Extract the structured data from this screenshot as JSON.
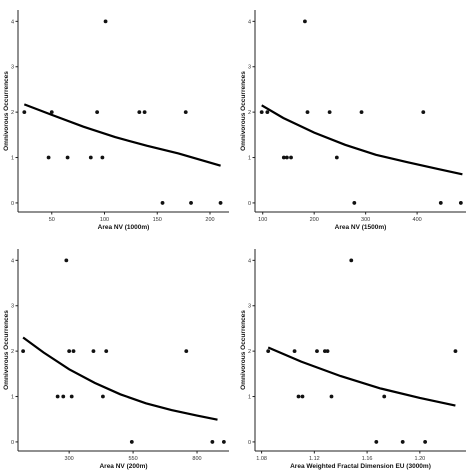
{
  "chart_data": [
    {
      "type": "scatter",
      "xlabel": "Area NV (1000m)",
      "ylabel": "Omnivorous Occurrences",
      "xlim": [
        18,
        218
      ],
      "ylim": [
        -0.2,
        4.25
      ],
      "xticks": [
        50,
        100,
        150,
        200
      ],
      "yticks": [
        0,
        1,
        2,
        3,
        4
      ],
      "grid": false,
      "points": [
        {
          "x": 24,
          "y": 2
        },
        {
          "x": 50,
          "y": 2
        },
        {
          "x": 47,
          "y": 1
        },
        {
          "x": 65,
          "y": 1
        },
        {
          "x": 87,
          "y": 1
        },
        {
          "x": 93,
          "y": 2
        },
        {
          "x": 98,
          "y": 1
        },
        {
          "x": 101,
          "y": 4
        },
        {
          "x": 133,
          "y": 2
        },
        {
          "x": 138,
          "y": 2
        },
        {
          "x": 155,
          "y": 0
        },
        {
          "x": 177,
          "y": 2
        },
        {
          "x": 182,
          "y": 0
        },
        {
          "x": 210,
          "y": 0
        }
      ],
      "fit": [
        {
          "x": 24,
          "y": 2.17
        },
        {
          "x": 50,
          "y": 1.94
        },
        {
          "x": 80,
          "y": 1.68
        },
        {
          "x": 110,
          "y": 1.45
        },
        {
          "x": 140,
          "y": 1.26
        },
        {
          "x": 170,
          "y": 1.09
        },
        {
          "x": 210,
          "y": 0.82
        }
      ]
    },
    {
      "type": "scatter",
      "xlabel": "Area NV (1500m)",
      "ylabel": "Omnivorous Occurrences",
      "xlim": [
        85,
        495
      ],
      "ylim": [
        -0.2,
        4.25
      ],
      "xticks": [
        100,
        200,
        300,
        400
      ],
      "yticks": [
        0,
        1,
        2,
        3,
        4
      ],
      "grid": false,
      "points": [
        {
          "x": 98,
          "y": 2
        },
        {
          "x": 109,
          "y": 2
        },
        {
          "x": 141,
          "y": 1
        },
        {
          "x": 147,
          "y": 1
        },
        {
          "x": 155,
          "y": 1
        },
        {
          "x": 182,
          "y": 4
        },
        {
          "x": 187,
          "y": 2
        },
        {
          "x": 230,
          "y": 2
        },
        {
          "x": 244,
          "y": 1
        },
        {
          "x": 278,
          "y": 0
        },
        {
          "x": 292,
          "y": 2
        },
        {
          "x": 412,
          "y": 2
        },
        {
          "x": 446,
          "y": 0
        },
        {
          "x": 485,
          "y": 0
        }
      ],
      "fit": [
        {
          "x": 98,
          "y": 2.15
        },
        {
          "x": 140,
          "y": 1.87
        },
        {
          "x": 200,
          "y": 1.55
        },
        {
          "x": 260,
          "y": 1.28
        },
        {
          "x": 320,
          "y": 1.06
        },
        {
          "x": 380,
          "y": 0.9
        },
        {
          "x": 440,
          "y": 0.75
        },
        {
          "x": 488,
          "y": 0.63
        }
      ]
    },
    {
      "type": "scatter",
      "xlabel": "Area NV (200m)",
      "ylabel": "Omnivorous Occurrences",
      "xlim": [
        100,
        925
      ],
      "ylim": [
        -0.2,
        4.25
      ],
      "xticks": [
        300,
        550,
        800
      ],
      "yticks": [
        0,
        1,
        2,
        3,
        4
      ],
      "grid": false,
      "points": [
        {
          "x": 120,
          "y": 2
        },
        {
          "x": 255,
          "y": 1
        },
        {
          "x": 277,
          "y": 1
        },
        {
          "x": 289,
          "y": 4
        },
        {
          "x": 300,
          "y": 2
        },
        {
          "x": 310,
          "y": 1
        },
        {
          "x": 317,
          "y": 2
        },
        {
          "x": 395,
          "y": 2
        },
        {
          "x": 432,
          "y": 1
        },
        {
          "x": 445,
          "y": 2
        },
        {
          "x": 545,
          "y": 0
        },
        {
          "x": 758,
          "y": 2
        },
        {
          "x": 860,
          "y": 0
        },
        {
          "x": 905,
          "y": 0
        }
      ],
      "fit": [
        {
          "x": 120,
          "y": 2.3
        },
        {
          "x": 200,
          "y": 1.97
        },
        {
          "x": 300,
          "y": 1.6
        },
        {
          "x": 400,
          "y": 1.3
        },
        {
          "x": 500,
          "y": 1.05
        },
        {
          "x": 600,
          "y": 0.85
        },
        {
          "x": 700,
          "y": 0.7
        },
        {
          "x": 800,
          "y": 0.58
        },
        {
          "x": 880,
          "y": 0.49
        }
      ]
    },
    {
      "type": "scatter",
      "xlabel": "Area Weighted Fractal Dimension EU (3000m)",
      "ylabel": "Omnivorous Occurrences",
      "xlim": [
        1.075,
        1.235
      ],
      "ylim": [
        -0.2,
        4.25
      ],
      "xticks": [
        1.08,
        1.12,
        1.16,
        1.2
      ],
      "xtick_labels": [
        "1.08",
        "1.12",
        "1.16",
        "1.20"
      ],
      "yticks": [
        0,
        1,
        2,
        3,
        4
      ],
      "grid": false,
      "points": [
        {
          "x": 1.085,
          "y": 2
        },
        {
          "x": 1.105,
          "y": 2
        },
        {
          "x": 1.108,
          "y": 1
        },
        {
          "x": 1.111,
          "y": 1
        },
        {
          "x": 1.122,
          "y": 2
        },
        {
          "x": 1.128,
          "y": 2
        },
        {
          "x": 1.13,
          "y": 2
        },
        {
          "x": 1.133,
          "y": 1
        },
        {
          "x": 1.148,
          "y": 4
        },
        {
          "x": 1.173,
          "y": 1
        },
        {
          "x": 1.167,
          "y": 0
        },
        {
          "x": 1.187,
          "y": 0
        },
        {
          "x": 1.204,
          "y": 0
        },
        {
          "x": 1.227,
          "y": 2
        }
      ],
      "fit": [
        {
          "x": 1.085,
          "y": 2.08
        },
        {
          "x": 1.11,
          "y": 1.77
        },
        {
          "x": 1.14,
          "y": 1.45
        },
        {
          "x": 1.17,
          "y": 1.18
        },
        {
          "x": 1.2,
          "y": 0.97
        },
        {
          "x": 1.227,
          "y": 0.8
        }
      ]
    }
  ]
}
